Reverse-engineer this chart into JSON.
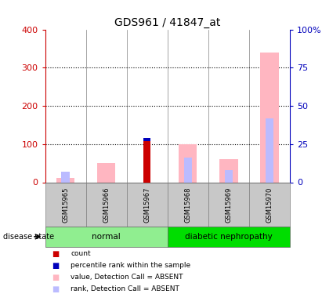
{
  "title": "GDS961 / 41847_at",
  "samples": [
    "GSM15965",
    "GSM15966",
    "GSM15967",
    "GSM15968",
    "GSM15969",
    "GSM15970"
  ],
  "groups": [
    {
      "label": "normal",
      "n": 3,
      "color": "#90EE90"
    },
    {
      "label": "diabetic nephropathy",
      "n": 3,
      "color": "#00DD00"
    }
  ],
  "count_values": [
    0,
    0,
    107,
    0,
    0,
    0
  ],
  "percentile_rank_values": [
    0,
    0,
    8,
    0,
    0,
    0
  ],
  "value_absent_values": [
    12,
    50,
    0,
    100,
    60,
    340
  ],
  "rank_absent_values": [
    28,
    0,
    0,
    65,
    32,
    168
  ],
  "left_ylim": [
    0,
    400
  ],
  "left_yticks": [
    0,
    100,
    200,
    300,
    400
  ],
  "left_ytick_labels": [
    "0",
    "100",
    "200",
    "300",
    "400"
  ],
  "right_ylim": [
    0,
    100
  ],
  "right_yticks": [
    0,
    25,
    50,
    75,
    100
  ],
  "right_ytick_labels": [
    "0",
    "25",
    "50",
    "75",
    "100%"
  ],
  "left_axis_color": "#CC0000",
  "right_axis_color": "#0000BB",
  "count_color": "#CC0000",
  "percentile_color": "#0000BB",
  "value_absent_color": "#FFB6C1",
  "rank_absent_color": "#BBBBFF",
  "legend_items": [
    {
      "label": "count",
      "color": "#CC0000"
    },
    {
      "label": "percentile rank within the sample",
      "color": "#0000BB"
    },
    {
      "label": "value, Detection Call = ABSENT",
      "color": "#FFB6C1"
    },
    {
      "label": "rank, Detection Call = ABSENT",
      "color": "#BBBBFF"
    }
  ]
}
